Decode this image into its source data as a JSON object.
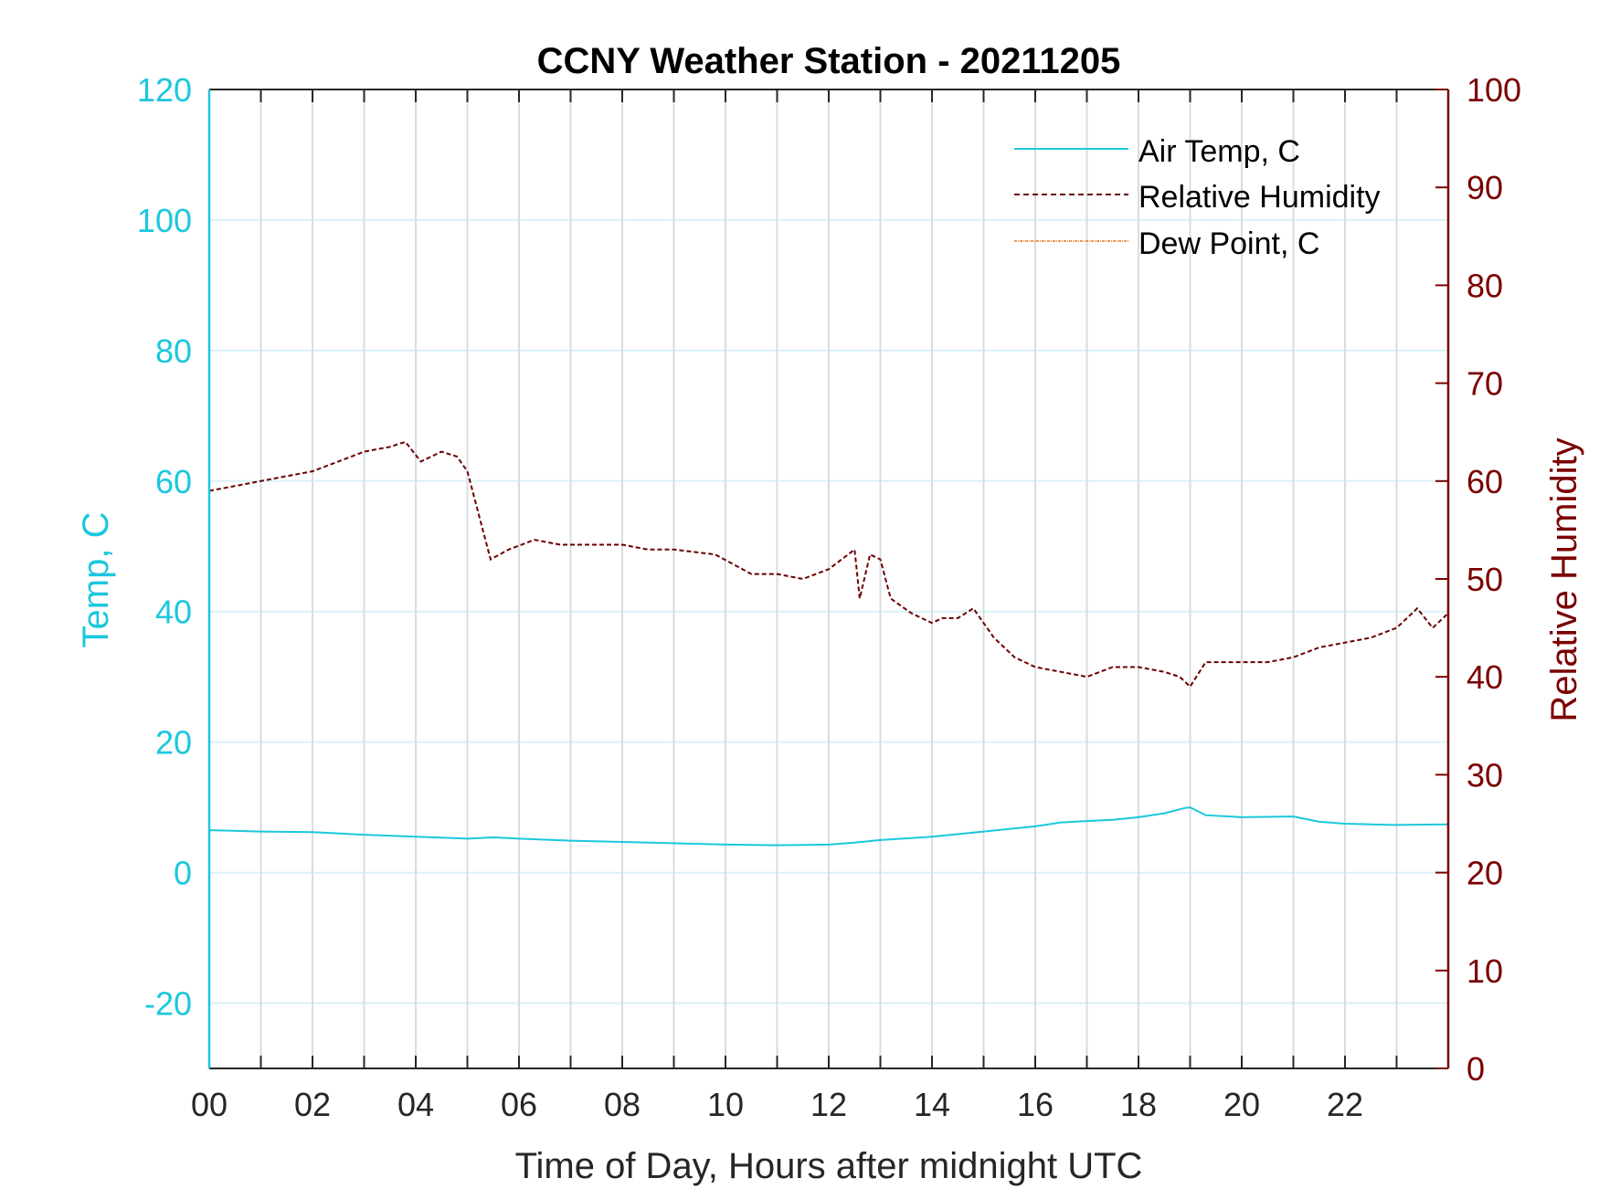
{
  "chart_data": {
    "type": "line",
    "title": "CCNY Weather Station - 20211205",
    "xlabel": "Time of Day, Hours after midnight UTC",
    "ylabel_left": "Temp, C",
    "ylabel_right": "Relative Humidity",
    "xlim": [
      0,
      24
    ],
    "ylim_left": [
      -30,
      120
    ],
    "ylim_right": [
      0,
      100
    ],
    "x_ticks": [
      0,
      2,
      4,
      6,
      8,
      10,
      12,
      14,
      16,
      18,
      20,
      22
    ],
    "x_tick_labels": [
      "00",
      "02",
      "04",
      "06",
      "08",
      "10",
      "12",
      "14",
      "16",
      "18",
      "20",
      "22"
    ],
    "y_left_ticks": [
      -20,
      0,
      20,
      40,
      60,
      80,
      100,
      120
    ],
    "y_left_tick_labels": [
      "-20",
      "0",
      "20",
      "40",
      "60",
      "80",
      "100",
      "120"
    ],
    "y_right_ticks": [
      0,
      10,
      20,
      30,
      40,
      50,
      60,
      70,
      80,
      90,
      100
    ],
    "y_right_tick_labels": [
      "0",
      "10",
      "20",
      "30",
      "40",
      "50",
      "60",
      "70",
      "80",
      "90",
      "100"
    ],
    "grid": true,
    "legend_position": "top-right",
    "colors": {
      "left_axis": "#1cc7dc",
      "right_axis": "#7a0000",
      "air_temp": "#1cc7dc",
      "humidity": "#6b0000",
      "dew_point": "#e8731a",
      "hour_grid": "#d9dde0",
      "h_grid": "#d8f2f6"
    },
    "series": [
      {
        "name": "Air Temp, C",
        "axis": "left",
        "style": "solid",
        "x": [
          0,
          1,
          2,
          3,
          4,
          5,
          5.5,
          6,
          7,
          8,
          9,
          10,
          11,
          12,
          12.5,
          13,
          14,
          15,
          16,
          16.5,
          17,
          17.5,
          18,
          18.5,
          18.9,
          19.0,
          19.3,
          20,
          21,
          21.5,
          22,
          23,
          24
        ],
        "y": [
          6.5,
          6.3,
          6.2,
          5.8,
          5.5,
          5.2,
          5.4,
          5.2,
          4.9,
          4.7,
          4.5,
          4.3,
          4.2,
          4.3,
          4.6,
          5.0,
          5.5,
          6.3,
          7.1,
          7.7,
          7.9,
          8.1,
          8.5,
          9.1,
          9.9,
          10.0,
          8.8,
          8.5,
          8.6,
          7.8,
          7.5,
          7.3,
          7.4
        ]
      },
      {
        "name": "Relative Humidity",
        "axis": "right",
        "style": "dashed",
        "x": [
          0,
          0.5,
          1,
          1.5,
          2,
          2.5,
          3,
          3.5,
          3.8,
          4.1,
          4.5,
          4.8,
          5.0,
          5.2,
          5.45,
          5.8,
          6.3,
          6.8,
          7.5,
          8.0,
          8.5,
          9.0,
          9.8,
          10.5,
          11.0,
          11.5,
          12.0,
          12.5,
          12.6,
          12.8,
          13.0,
          13.2,
          13.6,
          14.0,
          14.2,
          14.5,
          14.8,
          15.2,
          15.6,
          16.0,
          16.5,
          17.0,
          17.5,
          18.0,
          18.5,
          18.8,
          19.0,
          19.3,
          19.8,
          20.5,
          21.0,
          21.5,
          22.0,
          22.5,
          23.0,
          23.4,
          23.7,
          24.0
        ],
        "y": [
          59,
          59.5,
          60,
          60.5,
          61,
          62,
          63,
          63.5,
          64,
          62,
          63,
          62.5,
          61,
          57,
          52,
          53,
          54,
          53.5,
          53.5,
          53.5,
          53,
          53,
          52.5,
          50.5,
          50.5,
          50,
          51,
          53,
          48,
          52.5,
          52,
          48,
          46.5,
          45.5,
          46,
          46,
          47,
          44,
          42,
          41,
          40.5,
          40,
          41,
          41,
          40.5,
          40,
          39,
          41.5,
          41.5,
          41.5,
          42,
          43,
          43.5,
          44,
          45,
          47,
          45,
          46.5
        ]
      },
      {
        "name": "Dew Point, C",
        "axis": "left",
        "style": "dashdot",
        "x": [],
        "y": []
      }
    ]
  }
}
